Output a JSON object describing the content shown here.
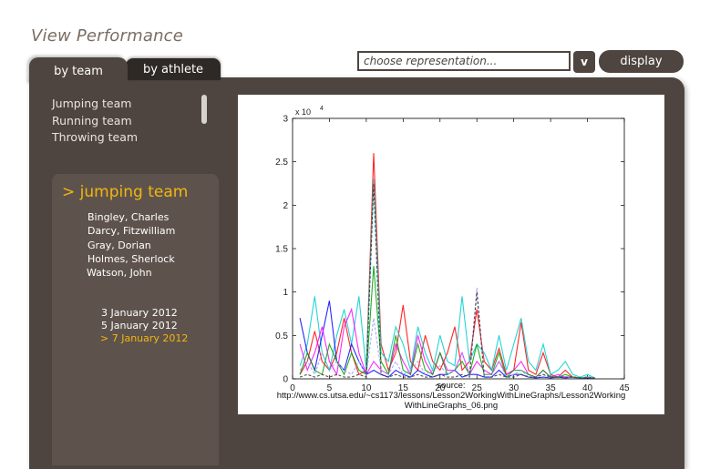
{
  "page": {
    "title": "View Performance"
  },
  "tabs": [
    {
      "label": "by team"
    },
    {
      "label": "by athlete"
    }
  ],
  "representation": {
    "placeholder": "choose representation...",
    "dropdown_label": "v",
    "display_label": "display"
  },
  "teams": [
    "Jumping team",
    "Running team",
    "Throwing team"
  ],
  "selected_team": {
    "title": "> jumping team",
    "athletes": [
      "Bingley, Charles",
      "Darcy, Fitzwilliam",
      "Gray, Dorian",
      "Holmes, Sherlock",
      "Watson, John"
    ],
    "dates": [
      "3 January 2012",
      "5 January 2012",
      "> 7 January 2012"
    ],
    "selected_date_index": 2
  },
  "image_caption": {
    "line1": "source:",
    "line2": "http://www.cs.utsa.edu/~cs1173/lessons/Lesson2WorkingWithLineGraphs/Lesson2Working",
    "line3": "WithLineGraphs_06.png"
  },
  "chart_data": {
    "type": "line",
    "multiplier_label": "x 10",
    "multiplier_exponent": "4",
    "xlim": [
      0,
      45
    ],
    "ylim": [
      0,
      3
    ],
    "xticks": [
      0,
      5,
      10,
      15,
      20,
      25,
      30,
      35,
      40,
      45
    ],
    "xtick_labels": [
      "0",
      "5",
      "10",
      "15",
      "20",
      "25",
      "30",
      "35",
      "40",
      "45"
    ],
    "yticks": [
      0,
      0.5,
      1,
      1.5,
      2,
      2.5,
      3
    ],
    "ytick_labels": [
      "0",
      "0.5",
      "1",
      "1.5",
      "2",
      "2.5",
      "3"
    ],
    "x": [
      1,
      2,
      3,
      4,
      5,
      6,
      7,
      8,
      9,
      10,
      11,
      12,
      13,
      14,
      15,
      16,
      17,
      18,
      19,
      20,
      21,
      22,
      23,
      24,
      25,
      26,
      27,
      28,
      29,
      30,
      31,
      32,
      33,
      34,
      35,
      36,
      37,
      38,
      39,
      40,
      41
    ],
    "series": [
      {
        "color": "#ff0000",
        "dash": false,
        "values": [
          0.05,
          0.2,
          0.55,
          0.2,
          0.1,
          0.3,
          0.7,
          0.3,
          0.05,
          0.1,
          2.6,
          0.4,
          0.1,
          0.3,
          0.85,
          0.2,
          0.1,
          0.5,
          0.2,
          0.1,
          0.3,
          0.6,
          0.1,
          0.2,
          0.8,
          0.2,
          0.1,
          0.35,
          0.05,
          0.1,
          0.65,
          0.1,
          0.05,
          0.3,
          0.05,
          0.02,
          0.1,
          0.02,
          0.01,
          0.02,
          0.01
        ]
      },
      {
        "color": "#00cccc",
        "dash": false,
        "values": [
          0.15,
          0.4,
          0.95,
          0.3,
          0.1,
          0.5,
          0.8,
          0.4,
          0.95,
          0.1,
          2.3,
          0.3,
          0.2,
          0.6,
          0.4,
          0.1,
          0.6,
          0.3,
          0.1,
          0.5,
          0.2,
          0.15,
          0.95,
          0.2,
          0.4,
          0.3,
          0.1,
          0.5,
          0.1,
          0.4,
          0.7,
          0.2,
          0.1,
          0.4,
          0.05,
          0.1,
          0.2,
          0.05,
          0.02,
          0.05,
          0.01
        ]
      },
      {
        "color": "#0000ff",
        "dash": false,
        "values": [
          0.7,
          0.3,
          0.1,
          0.5,
          0.9,
          0.2,
          0.1,
          0.4,
          0.2,
          0.05,
          0.1,
          0.05,
          0.02,
          0.1,
          0.05,
          0.02,
          0.1,
          0.05,
          0.02,
          0.05,
          0.05,
          0.1,
          0.02,
          0.05,
          0.05,
          0.02,
          0.02,
          0.1,
          0.02,
          0.05,
          0.05,
          0.02,
          0.01,
          0.02,
          0.01,
          0.02,
          0.01,
          0.02,
          0.01,
          0.01,
          0.01
        ]
      },
      {
        "color": "#ff00ff",
        "dash": false,
        "values": [
          0.4,
          0.1,
          0.3,
          0.6,
          0.2,
          0.05,
          0.6,
          0.8,
          0.3,
          0.05,
          0.2,
          0.1,
          0.05,
          0.4,
          0.2,
          0.05,
          0.5,
          0.2,
          0.05,
          0.3,
          0.1,
          0.1,
          0.3,
          0.05,
          0.2,
          0.1,
          0.05,
          0.2,
          0.05,
          0.1,
          0.2,
          0.05,
          0.02,
          0.1,
          0.02,
          0.05,
          0.02,
          0.02,
          0.01,
          0.02,
          0.01
        ]
      },
      {
        "color": "#00a000",
        "dash": false,
        "values": [
          0.05,
          0.3,
          0.1,
          0.05,
          0.4,
          0.2,
          0.05,
          0.3,
          0.1,
          0.05,
          1.3,
          0.2,
          0.05,
          0.5,
          0.1,
          0.05,
          0.4,
          0.1,
          0.05,
          0.3,
          0.05,
          0.1,
          0.2,
          0.05,
          0.4,
          0.05,
          0.05,
          0.3,
          0.02,
          0.1,
          0.1,
          0.05,
          0.02,
          0.1,
          0.02,
          0.02,
          0.05,
          0.02,
          0.01,
          0.02,
          0.01
        ]
      },
      {
        "color": "#9999ff",
        "dash": true,
        "values": [
          0.1,
          0.2,
          0.05,
          0.3,
          0.1,
          0.2,
          0.1,
          0.05,
          0.2,
          0.05,
          0.7,
          0.1,
          0.05,
          0.2,
          0.05,
          0.1,
          0.2,
          0.05,
          0.1,
          0.15,
          0.05,
          0.1,
          0.3,
          0.05,
          1.05,
          0.05,
          0.05,
          0.2,
          0.02,
          0.05,
          0.1,
          0.02,
          0.02,
          0.05,
          0.01,
          0.05,
          0.02,
          0.01,
          0.01,
          0.02,
          0.01
        ]
      },
      {
        "color": "#333333",
        "dash": true,
        "values": [
          0.02,
          0.05,
          0.02,
          0.05,
          0.02,
          0.05,
          0.02,
          0.02,
          0.05,
          0.02,
          2.25,
          0.05,
          0.02,
          0.05,
          0.02,
          0.02,
          0.05,
          0.02,
          0.02,
          0.05,
          0.02,
          0.02,
          0.05,
          0.02,
          1.0,
          0.02,
          0.02,
          0.05,
          0.02,
          0.02,
          0.05,
          0.02,
          0.02,
          0.05,
          0.02,
          0.02,
          0.02,
          0.02,
          0.01,
          0.01,
          0.01
        ]
      }
    ]
  }
}
